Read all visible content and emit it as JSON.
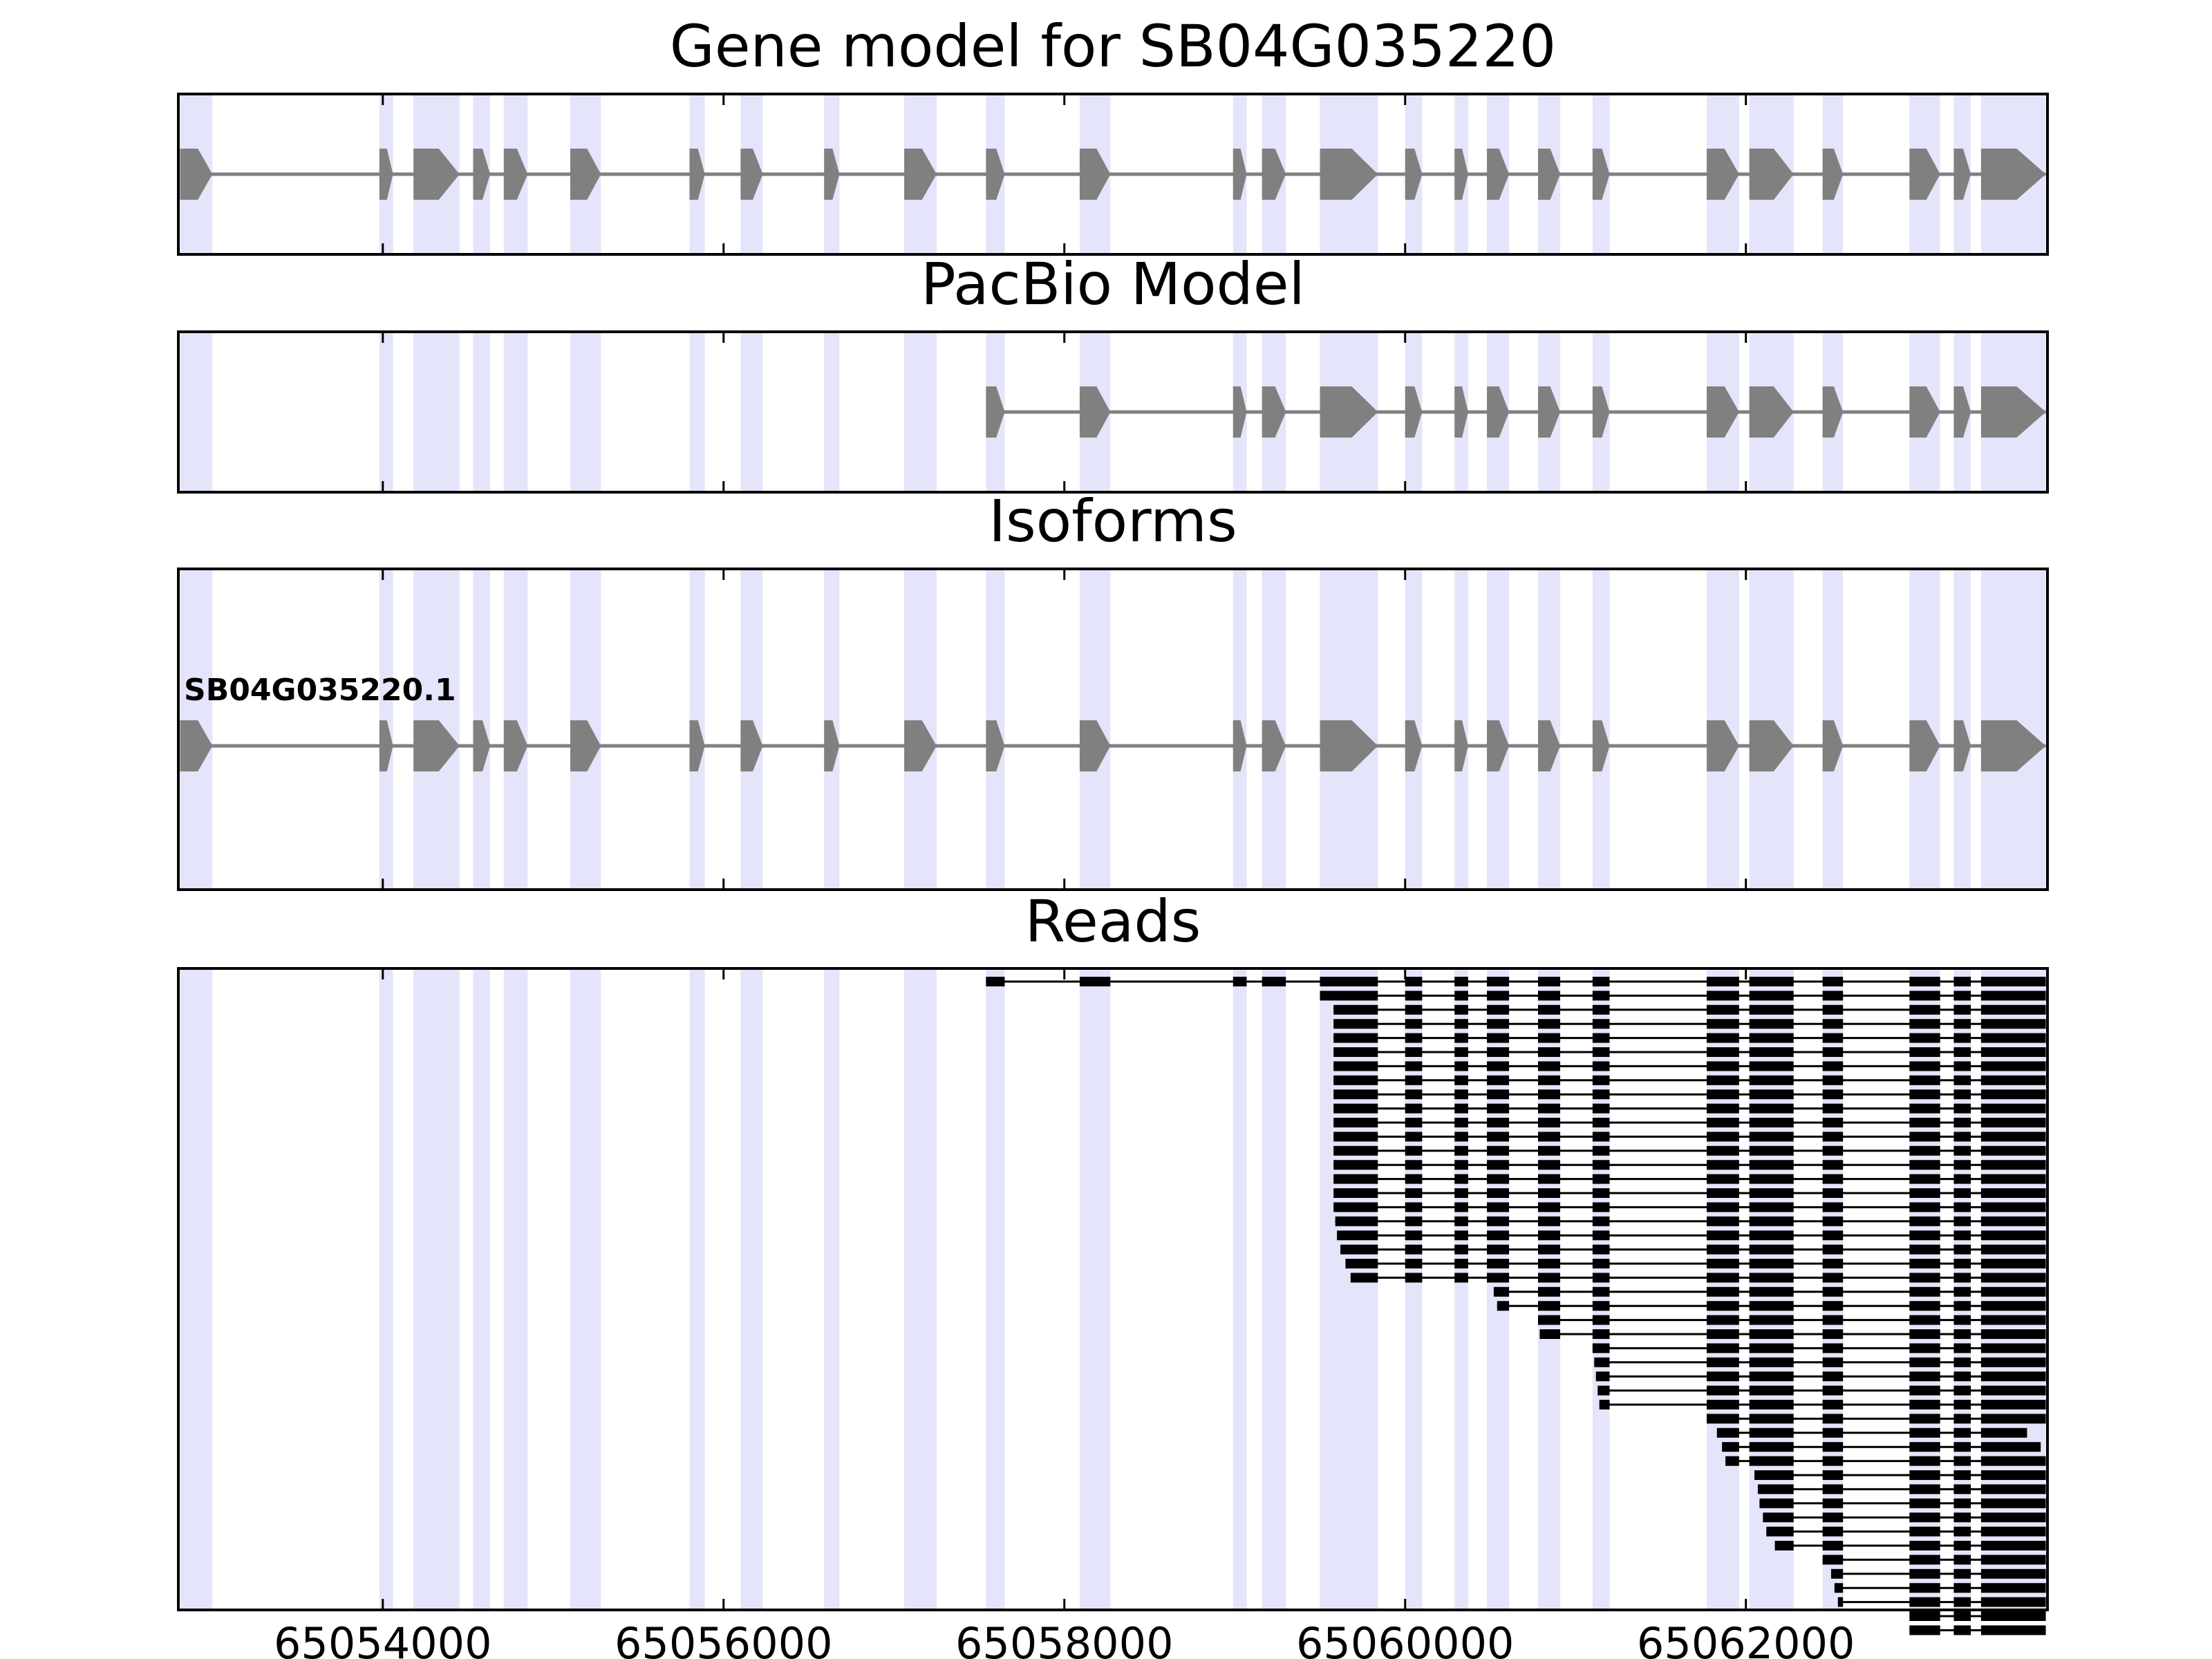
{
  "chart_data": {
    "type": "gene-structure",
    "x_range": [
      65052800,
      65063770
    ],
    "x_ticks": [
      65054000,
      65056000,
      65058000,
      65060000,
      65062000
    ],
    "x_tick_labels": [
      "65054000",
      "65056000",
      "65058000",
      "65060000",
      "65062000"
    ],
    "colors": {
      "exon": "#808080",
      "intron": "#808080",
      "highlight": "#e4e4fa",
      "read": "#000000"
    },
    "exons": [
      [
        65052810,
        65053000
      ],
      [
        65053980,
        65054060
      ],
      [
        65054180,
        65054450
      ],
      [
        65054530,
        65054630
      ],
      [
        65054710,
        65054850
      ],
      [
        65055100,
        65055280
      ],
      [
        65055800,
        65055890
      ],
      [
        65056100,
        65056230
      ],
      [
        65056590,
        65056680
      ],
      [
        65057060,
        65057250
      ],
      [
        65057540,
        65057650
      ],
      [
        65058090,
        65058270
      ],
      [
        65058990,
        65059070
      ],
      [
        65059160,
        65059300
      ],
      [
        65059500,
        65059840
      ],
      [
        65060000,
        65060100
      ],
      [
        65060290,
        65060370
      ],
      [
        65060480,
        65060610
      ],
      [
        65060780,
        65060910
      ],
      [
        65061100,
        65061200
      ],
      [
        65061770,
        65061960
      ],
      [
        65062020,
        65062280
      ],
      [
        65062450,
        65062570
      ],
      [
        65062960,
        65063140
      ],
      [
        65063220,
        65063320
      ],
      [
        65063380,
        65063760
      ]
    ],
    "panels": [
      {
        "title": "Gene model for SB04G035220",
        "exon_range": [
          0,
          25
        ]
      },
      {
        "title": "PacBio Model",
        "exon_range": [
          10,
          25
        ]
      },
      {
        "title": "Isoforms",
        "isoforms": [
          {
            "label": "SB04G035220.1",
            "exon_range": [
              0,
              25
            ]
          }
        ]
      },
      {
        "title": "Reads",
        "reads": [
          {
            "s": 65057540,
            "e": 65063760
          },
          {
            "s": 65059500,
            "e": 65063760
          },
          {
            "s": 65059580,
            "e": 65063760
          },
          {
            "s": 65059580,
            "e": 65063760
          },
          {
            "s": 65059580,
            "e": 65063760
          },
          {
            "s": 65059580,
            "e": 65063760
          },
          {
            "s": 65059580,
            "e": 65063760
          },
          {
            "s": 65059580,
            "e": 65063760
          },
          {
            "s": 65059580,
            "e": 65063760
          },
          {
            "s": 65059580,
            "e": 65063760
          },
          {
            "s": 65059580,
            "e": 65063760
          },
          {
            "s": 65059580,
            "e": 65063760
          },
          {
            "s": 65059580,
            "e": 65063760
          },
          {
            "s": 65059580,
            "e": 65063760
          },
          {
            "s": 65059580,
            "e": 65063760
          },
          {
            "s": 65059580,
            "e": 65063760
          },
          {
            "s": 65059580,
            "e": 65063760
          },
          {
            "s": 65059590,
            "e": 65063760
          },
          {
            "s": 65059600,
            "e": 65063760
          },
          {
            "s": 65059620,
            "e": 65063760
          },
          {
            "s": 65059650,
            "e": 65063760
          },
          {
            "s": 65059680,
            "e": 65063760
          },
          {
            "s": 65060520,
            "e": 65063760
          },
          {
            "s": 65060540,
            "e": 65063760
          },
          {
            "s": 65060780,
            "e": 65063760
          },
          {
            "s": 65060790,
            "e": 65063760
          },
          {
            "s": 65061100,
            "e": 65063760
          },
          {
            "s": 65061110,
            "e": 65063760
          },
          {
            "s": 65061120,
            "e": 65063760
          },
          {
            "s": 65061130,
            "e": 65063760
          },
          {
            "s": 65061140,
            "e": 65063760
          },
          {
            "s": 65061770,
            "e": 65063760
          },
          {
            "s": 65061830,
            "e": 65063650
          },
          {
            "s": 65061860,
            "e": 65063730
          },
          {
            "s": 65061880,
            "e": 65063760
          },
          {
            "s": 65062050,
            "e": 65063760
          },
          {
            "s": 65062070,
            "e": 65063760
          },
          {
            "s": 65062080,
            "e": 65063760
          },
          {
            "s": 65062100,
            "e": 65063760
          },
          {
            "s": 65062120,
            "e": 65063760
          },
          {
            "s": 65062170,
            "e": 65063760
          },
          {
            "s": 65062450,
            "e": 65063760
          },
          {
            "s": 65062500,
            "e": 65063760
          },
          {
            "s": 65062520,
            "e": 65063760
          },
          {
            "s": 65062540,
            "e": 65063760
          },
          {
            "s": 65062960,
            "e": 65063760
          },
          {
            "s": 65062960,
            "e": 65063760
          }
        ]
      }
    ]
  }
}
